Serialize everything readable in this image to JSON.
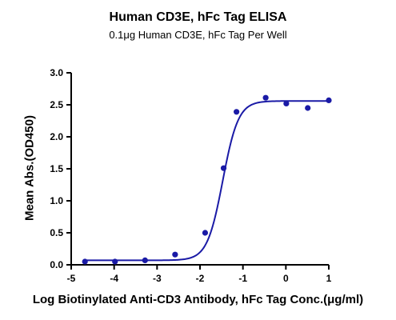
{
  "chart_data": {
    "type": "scatter",
    "title": "Human CD3E, hFc Tag ELISA",
    "subtitle": "0.1μg Human CD3E, hFc Tag Per Well",
    "xlabel": "Log Biotinylated Anti-CD3 Antibody, hFc Tag Conc.(μg/ml)",
    "ylabel": "Mean Abs.(OD450)",
    "xlim": [
      -5,
      1
    ],
    "ylim": [
      0,
      3.0
    ],
    "x_ticks": [
      -5,
      -4,
      -3,
      -2,
      -1,
      0,
      1
    ],
    "x_tick_labels": [
      "-5",
      "-4",
      "-3",
      "-2",
      "-1",
      "0",
      "1"
    ],
    "y_ticks": [
      0.0,
      0.5,
      1.0,
      1.5,
      2.0,
      2.5,
      3.0
    ],
    "y_tick_labels": [
      "0.0",
      "0.5",
      "1.0",
      "1.5",
      "2.0",
      "2.5",
      "3.0"
    ],
    "grid": false,
    "series": [
      {
        "points": [
          {
            "x": -4.68,
            "y": 0.05
          },
          {
            "x": -3.98,
            "y": 0.05
          },
          {
            "x": -3.28,
            "y": 0.07
          },
          {
            "x": -2.58,
            "y": 0.16
          },
          {
            "x": -1.88,
            "y": 0.5
          },
          {
            "x": -1.45,
            "y": 1.51
          },
          {
            "x": -1.15,
            "y": 2.39
          },
          {
            "x": -0.47,
            "y": 2.61
          },
          {
            "x": 0.01,
            "y": 2.52
          },
          {
            "x": 0.51,
            "y": 2.45
          },
          {
            "x": 1.0,
            "y": 2.57
          }
        ]
      }
    ],
    "fit_curve": {
      "model": "4PL",
      "bottom": 0.07,
      "top": 2.56,
      "log_ec50": -1.47,
      "hill_slope": 2.4,
      "x_range": [
        -4.68,
        1.0
      ]
    },
    "colors": {
      "series": "#1a1aa6",
      "axis": "#000000"
    }
  }
}
